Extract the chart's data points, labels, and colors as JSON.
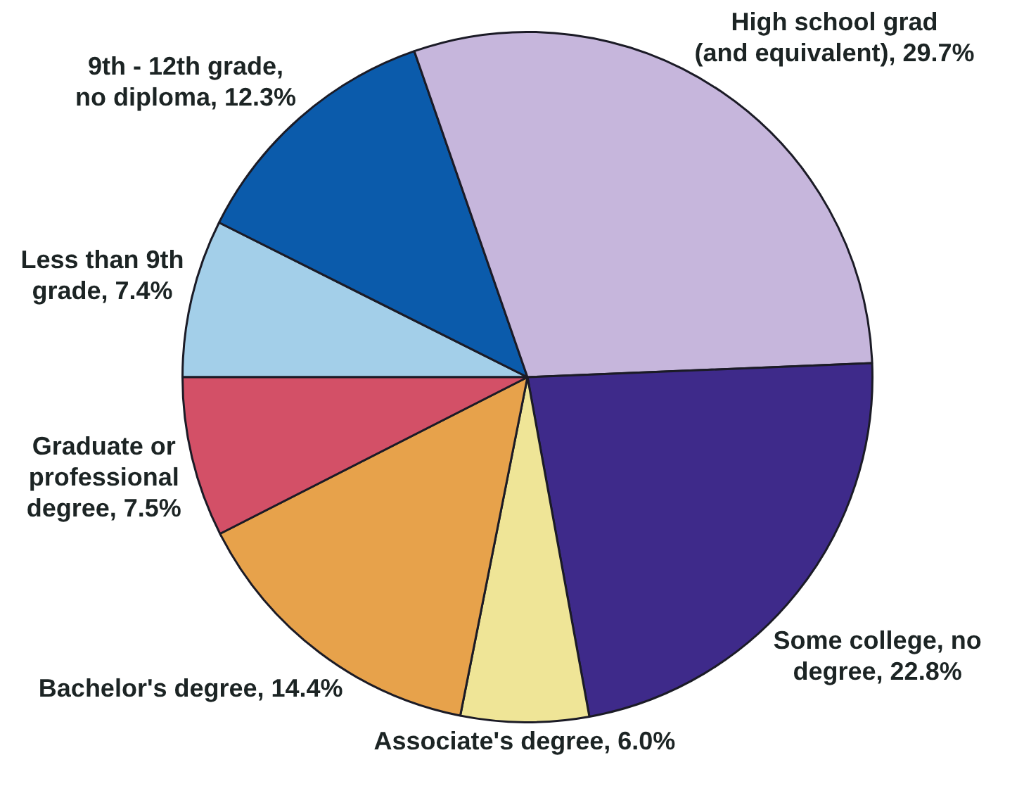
{
  "chart_data": {
    "type": "pie",
    "categories": [
      "Less than 9th grade",
      "9th - 12th grade, no diploma",
      "High school grad (and equivalent)",
      "Some college, no degree",
      "Associate's degree",
      "Bachelor's degree",
      "Graduate or professional degree"
    ],
    "values": [
      7.4,
      12.3,
      29.7,
      22.8,
      6.0,
      14.4,
      7.5
    ],
    "value_labels": [
      "7.4%",
      "12.3%",
      "29.7%",
      "22.8%",
      "6.0%",
      "14.4%",
      "7.5%"
    ],
    "colors": [
      "#a3cfe9",
      "#0b5bab",
      "#c6b6dc",
      "#3e2a8a",
      "#efe597",
      "#e7a24b",
      "#d35067"
    ],
    "legend": false
  }
}
